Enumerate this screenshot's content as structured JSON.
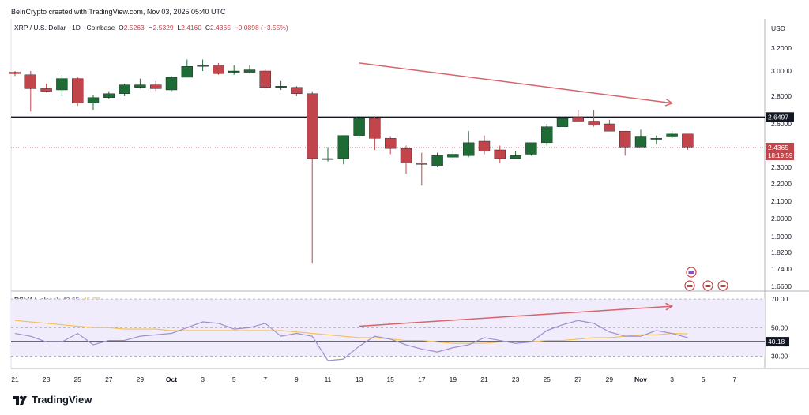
{
  "header": {
    "title": "BeInCrypto created with TradingView.com, Nov 03, 2025 05:40 UTC"
  },
  "legend": {
    "symbol": "XRP / U.S. Dollar · 1D · Coinbase",
    "o_label": "O",
    "o": "2.5263",
    "h_label": "H",
    "h": "2.5329",
    "l_label": "L",
    "l": "2.4160",
    "c_label": "C",
    "c": "2.4365",
    "change": "−0.0898 (−3.55%)"
  },
  "rsi_legend": {
    "label": "RSI (14, close)",
    "rsi": "42.65",
    "ma": "45.72"
  },
  "footer": {
    "brand": "TradingView"
  },
  "colors": {
    "up": "#1e6b36",
    "down": "#c2454b",
    "trend": "#d8636b",
    "rsi_line": "#9c8fd0",
    "rsi_ma": "#f5c04f",
    "rsi_band": "#f1ecfb"
  },
  "chart_data": [
    {
      "type": "candlestick",
      "currency": "USD",
      "ylim": [
        1.62,
        3.3
      ],
      "y_ticks": [
        "3.2000",
        "3.0000",
        "2.8000",
        "2.6000",
        "2.3000",
        "2.2000",
        "2.1000",
        "2.0000",
        "1.9000",
        "1.8200",
        "1.7400",
        "1.6600"
      ],
      "x_ticks": [
        "21",
        "23",
        "25",
        "27",
        "29",
        "Oct",
        "3",
        "5",
        "7",
        "9",
        "11",
        "13",
        "15",
        "17",
        "19",
        "21",
        "23",
        "25",
        "27",
        "29",
        "Nov",
        "3",
        "5",
        "7"
      ],
      "start_date": "2025-09-20",
      "candles": [
        {
          "o": 2.99,
          "h": 3.0,
          "l": 2.96,
          "c": 2.98
        },
        {
          "o": 2.97,
          "h": 3.0,
          "l": 2.69,
          "c": 2.86
        },
        {
          "o": 2.86,
          "h": 2.9,
          "l": 2.83,
          "c": 2.84
        },
        {
          "o": 2.85,
          "h": 2.97,
          "l": 2.8,
          "c": 2.94
        },
        {
          "o": 2.94,
          "h": 2.95,
          "l": 2.73,
          "c": 2.75
        },
        {
          "o": 2.75,
          "h": 2.81,
          "l": 2.7,
          "c": 2.79
        },
        {
          "o": 2.79,
          "h": 2.84,
          "l": 2.78,
          "c": 2.82
        },
        {
          "o": 2.82,
          "h": 2.9,
          "l": 2.8,
          "c": 2.89
        },
        {
          "o": 2.87,
          "h": 2.94,
          "l": 2.86,
          "c": 2.89
        },
        {
          "o": 2.89,
          "h": 2.92,
          "l": 2.84,
          "c": 2.86
        },
        {
          "o": 2.85,
          "h": 2.96,
          "l": 2.84,
          "c": 2.95
        },
        {
          "o": 2.95,
          "h": 3.1,
          "l": 2.95,
          "c": 3.04
        },
        {
          "o": 3.04,
          "h": 3.1,
          "l": 3.0,
          "c": 3.05
        },
        {
          "o": 3.05,
          "h": 3.07,
          "l": 2.97,
          "c": 2.98
        },
        {
          "o": 2.99,
          "h": 3.05,
          "l": 2.97,
          "c": 3.0
        },
        {
          "o": 2.99,
          "h": 3.05,
          "l": 2.98,
          "c": 3.01
        },
        {
          "o": 3.0,
          "h": 3.01,
          "l": 2.86,
          "c": 2.87
        },
        {
          "o": 2.87,
          "h": 2.92,
          "l": 2.85,
          "c": 2.88
        },
        {
          "o": 2.87,
          "h": 2.88,
          "l": 2.8,
          "c": 2.82
        },
        {
          "o": 2.82,
          "h": 2.84,
          "l": 1.77,
          "c": 2.36
        },
        {
          "o": 2.36,
          "h": 2.44,
          "l": 2.34,
          "c": 2.36
        },
        {
          "o": 2.36,
          "h": 2.52,
          "l": 2.32,
          "c": 2.52
        },
        {
          "o": 2.52,
          "h": 2.65,
          "l": 2.5,
          "c": 2.64
        },
        {
          "o": 2.64,
          "h": 2.65,
          "l": 2.42,
          "c": 2.5
        },
        {
          "o": 2.5,
          "h": 2.51,
          "l": 2.39,
          "c": 2.43
        },
        {
          "o": 2.43,
          "h": 2.45,
          "l": 2.26,
          "c": 2.33
        },
        {
          "o": 2.33,
          "h": 2.4,
          "l": 2.19,
          "c": 2.32
        },
        {
          "o": 2.31,
          "h": 2.4,
          "l": 2.3,
          "c": 2.38
        },
        {
          "o": 2.37,
          "h": 2.41,
          "l": 2.35,
          "c": 2.39
        },
        {
          "o": 2.38,
          "h": 2.55,
          "l": 2.37,
          "c": 2.47
        },
        {
          "o": 2.48,
          "h": 2.52,
          "l": 2.39,
          "c": 2.41
        },
        {
          "o": 2.42,
          "h": 2.45,
          "l": 2.33,
          "c": 2.36
        },
        {
          "o": 2.36,
          "h": 2.41,
          "l": 2.36,
          "c": 2.38
        },
        {
          "o": 2.39,
          "h": 2.47,
          "l": 2.38,
          "c": 2.47
        },
        {
          "o": 2.47,
          "h": 2.6,
          "l": 2.45,
          "c": 2.58
        },
        {
          "o": 2.58,
          "h": 2.64,
          "l": 2.58,
          "c": 2.64
        },
        {
          "o": 2.65,
          "h": 2.7,
          "l": 2.62,
          "c": 2.62
        },
        {
          "o": 2.62,
          "h": 2.7,
          "l": 2.58,
          "c": 2.59
        },
        {
          "o": 2.6,
          "h": 2.63,
          "l": 2.55,
          "c": 2.55
        },
        {
          "o": 2.55,
          "h": 2.55,
          "l": 2.38,
          "c": 2.44
        },
        {
          "o": 2.44,
          "h": 2.56,
          "l": 2.44,
          "c": 2.51
        },
        {
          "o": 2.5,
          "h": 2.52,
          "l": 2.46,
          "c": 2.5
        },
        {
          "o": 2.51,
          "h": 2.55,
          "l": 2.5,
          "c": 2.53
        },
        {
          "o": 2.53,
          "h": 2.53,
          "l": 2.42,
          "c": 2.44
        }
      ],
      "horizontal_line": {
        "value": 2.6497,
        "label": "2.6497"
      },
      "last_price": {
        "value": 2.4365,
        "label": "2.4365",
        "countdown": "18:19:59"
      },
      "trend_arrow": {
        "from": {
          "x_index": 22,
          "y": 3.07
        },
        "to": {
          "x_index": 42,
          "y": 2.75
        }
      }
    },
    {
      "type": "line",
      "title": "RSI (14, close)",
      "ylim": [
        22,
        75
      ],
      "y_ticks": [
        "70.00",
        "50.00",
        "30.00"
      ],
      "band": [
        30,
        70
      ],
      "horizontal_line": {
        "value": 40.18,
        "label": "40.18"
      },
      "series": [
        {
          "name": "RSI",
          "values": [
            46,
            44,
            40,
            40,
            46,
            38,
            41,
            41,
            44,
            45,
            46,
            50,
            54,
            53,
            49,
            50,
            53,
            44,
            46,
            44,
            27,
            28,
            37,
            44,
            42,
            38,
            35,
            33,
            36,
            38,
            43,
            41,
            39,
            40,
            48,
            52,
            55,
            53,
            47,
            44,
            44,
            48,
            46,
            43
          ]
        },
        {
          "name": "RSI-based MA",
          "values": [
            55,
            54,
            53,
            52,
            51,
            50,
            50,
            49,
            49,
            49,
            48,
            48,
            48,
            48,
            48,
            48,
            48,
            48,
            47,
            46,
            45,
            44,
            43,
            43,
            42,
            41,
            41,
            40,
            39,
            39,
            39,
            40,
            40,
            40,
            41,
            41,
            42,
            43,
            43,
            44,
            45,
            45,
            46,
            45.7
          ]
        }
      ],
      "trend_arrow": {
        "from": {
          "x_index": 22,
          "y": 51
        },
        "to": {
          "x_index": 42,
          "y": 65
        }
      }
    }
  ]
}
